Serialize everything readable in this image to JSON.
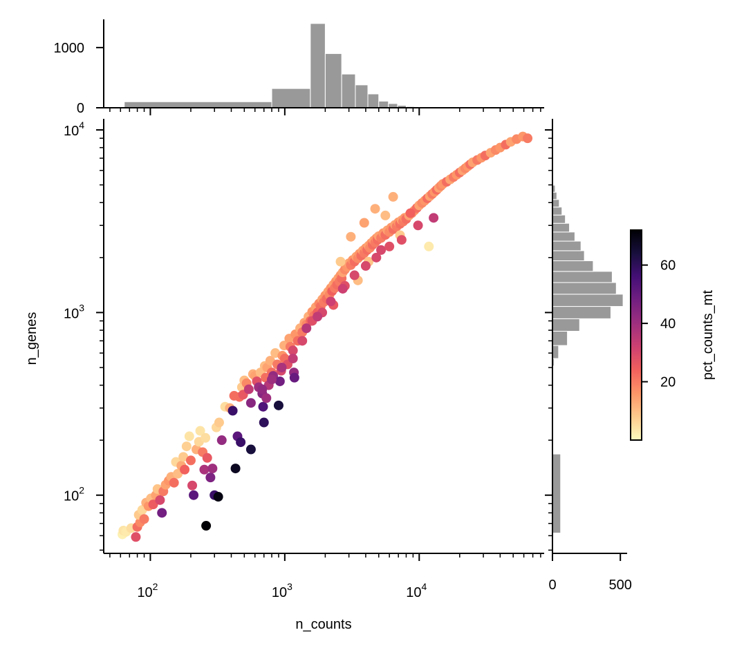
{
  "chart_data": [
    {
      "id": "main-scatter",
      "type": "scatter",
      "xlabel": "n_counts",
      "ylabel": "n_genes",
      "xscale": "log",
      "yscale": "log",
      "xlim": [
        45,
        85000
      ],
      "ylim": [
        48,
        11500
      ],
      "x_ticks": [
        {
          "value": 100,
          "base": "10",
          "exp": "2"
        },
        {
          "value": 1000,
          "base": "10",
          "exp": "3"
        },
        {
          "value": 10000,
          "base": "10",
          "exp": "4"
        }
      ],
      "y_ticks": [
        {
          "value": 100,
          "base": "10",
          "exp": "2"
        },
        {
          "value": 1000,
          "base": "10",
          "exp": "3"
        },
        {
          "value": 10000,
          "base": "10",
          "exp": "4"
        }
      ],
      "colormap": "magma_r",
      "color_key": "pct_counts_mt",
      "points": [
        [
          62,
          61,
          2
        ],
        [
          63,
          64,
          4
        ],
        [
          66,
          63,
          3
        ],
        [
          72,
          66,
          5
        ],
        [
          78,
          59,
          28
        ],
        [
          80,
          67,
          22
        ],
        [
          84,
          71,
          18
        ],
        [
          82,
          78,
          8
        ],
        [
          87,
          83,
          6
        ],
        [
          90,
          74,
          20
        ],
        [
          93,
          91,
          12
        ],
        [
          97,
          87,
          16
        ],
        [
          101,
          96,
          10
        ],
        [
          105,
          89,
          25
        ],
        [
          110,
          100,
          14
        ],
        [
          113,
          108,
          9
        ],
        [
          118,
          94,
          30
        ],
        [
          122,
          80,
          48
        ],
        [
          125,
          105,
          20
        ],
        [
          130,
          114,
          14
        ],
        [
          137,
          120,
          16
        ],
        [
          143,
          126,
          12
        ],
        [
          150,
          117,
          22
        ],
        [
          160,
          131,
          10
        ],
        [
          155,
          152,
          6
        ],
        [
          170,
          145,
          13
        ],
        [
          176,
          162,
          8
        ],
        [
          180,
          138,
          24
        ],
        [
          186,
          185,
          7
        ],
        [
          195,
          210,
          4
        ],
        [
          200,
          155,
          22
        ],
        [
          205,
          113,
          30
        ],
        [
          210,
          100,
          52
        ],
        [
          220,
          178,
          12
        ],
        [
          230,
          196,
          6
        ],
        [
          235,
          225,
          4
        ],
        [
          245,
          172,
          20
        ],
        [
          252,
          138,
          38
        ],
        [
          257,
          206,
          5
        ],
        [
          260,
          68,
          72
        ],
        [
          265,
          160,
          26
        ],
        [
          280,
          125,
          46
        ],
        [
          290,
          140,
          40
        ],
        [
          300,
          100,
          58
        ],
        [
          310,
          235,
          6
        ],
        [
          320,
          98,
          70
        ],
        [
          325,
          250,
          8
        ],
        [
          340,
          200,
          42
        ],
        [
          360,
          305,
          5
        ],
        [
          390,
          300,
          12
        ],
        [
          410,
          290,
          58
        ],
        [
          420,
          350,
          22
        ],
        [
          430,
          140,
          68
        ],
        [
          445,
          210,
          52
        ],
        [
          460,
          345,
          22
        ],
        [
          470,
          195,
          58
        ],
        [
          480,
          390,
          8
        ],
        [
          490,
          355,
          26
        ],
        [
          500,
          425,
          10
        ],
        [
          520,
          410,
          18
        ],
        [
          540,
          380,
          34
        ],
        [
          560,
          178,
          64
        ],
        [
          580,
          460,
          12
        ],
        [
          600,
          450,
          14
        ],
        [
          620,
          420,
          28
        ],
        [
          640,
          390,
          40
        ],
        [
          660,
          470,
          10
        ],
        [
          680,
          360,
          44
        ],
        [
          690,
          305,
          54
        ],
        [
          700,
          250,
          60
        ],
        [
          710,
          510,
          10
        ],
        [
          720,
          440,
          22
        ],
        [
          730,
          340,
          40
        ],
        [
          740,
          500,
          14
        ],
        [
          760,
          400,
          36
        ],
        [
          780,
          545,
          12
        ],
        [
          800,
          470,
          22
        ],
        [
          820,
          450,
          42
        ],
        [
          850,
          600,
          10
        ],
        [
          880,
          520,
          20
        ],
        [
          900,
          310,
          64
        ],
        [
          920,
          420,
          48
        ],
        [
          940,
          480,
          30
        ],
        [
          960,
          580,
          16
        ],
        [
          990,
          660,
          12
        ],
        [
          1000,
          560,
          22
        ],
        [
          1050,
          520,
          28
        ],
        [
          1080,
          720,
          14
        ],
        [
          1100,
          650,
          20
        ],
        [
          1150,
          620,
          30
        ],
        [
          1170,
          470,
          42
        ],
        [
          1180,
          440,
          50
        ],
        [
          1200,
          760,
          16
        ],
        [
          1250,
          700,
          22
        ],
        [
          1300,
          820,
          12
        ],
        [
          1350,
          780,
          20
        ],
        [
          1400,
          880,
          14
        ],
        [
          1450,
          860,
          18
        ],
        [
          1500,
          950,
          12
        ],
        [
          1550,
          900,
          22
        ],
        [
          1600,
          1010,
          16
        ],
        [
          1650,
          960,
          20
        ],
        [
          1700,
          1070,
          14
        ],
        [
          1750,
          1000,
          24
        ],
        [
          1800,
          1120,
          18
        ],
        [
          1850,
          1080,
          22
        ],
        [
          1900,
          1180,
          14
        ],
        [
          1950,
          1140,
          20
        ],
        [
          2000,
          1240,
          16
        ],
        [
          2050,
          1190,
          22
        ],
        [
          2100,
          1300,
          14
        ],
        [
          2150,
          1250,
          18
        ],
        [
          2200,
          1360,
          16
        ],
        [
          2250,
          1310,
          24
        ],
        [
          2300,
          1420,
          14
        ],
        [
          2350,
          1360,
          20
        ],
        [
          2400,
          1480,
          16
        ],
        [
          2450,
          1420,
          22
        ],
        [
          2500,
          1540,
          14
        ],
        [
          2550,
          1480,
          20
        ],
        [
          2600,
          1600,
          16
        ],
        [
          2650,
          1540,
          22
        ],
        [
          2700,
          1660,
          14
        ],
        [
          2800,
          1720,
          18
        ],
        [
          2900,
          1780,
          16
        ],
        [
          3000,
          1860,
          14
        ],
        [
          3100,
          1820,
          20
        ],
        [
          3200,
          1940,
          16
        ],
        [
          3300,
          1900,
          22
        ],
        [
          3400,
          2020,
          14
        ],
        [
          3500,
          1980,
          18
        ],
        [
          3600,
          2100,
          16
        ],
        [
          3700,
          2050,
          22
        ],
        [
          3800,
          2180,
          14
        ],
        [
          3900,
          2120,
          20
        ],
        [
          4000,
          2250,
          16
        ],
        [
          4100,
          2200,
          22
        ],
        [
          4200,
          2320,
          14
        ],
        [
          4300,
          2260,
          18
        ],
        [
          4400,
          2400,
          16
        ],
        [
          4500,
          2350,
          22
        ],
        [
          4600,
          2480,
          14
        ],
        [
          4700,
          2420,
          20
        ],
        [
          4800,
          2550,
          16
        ],
        [
          4900,
          2500,
          22
        ],
        [
          5000,
          2620,
          14
        ],
        [
          5200,
          2560,
          20
        ],
        [
          5400,
          2720,
          16
        ],
        [
          5600,
          2660,
          22
        ],
        [
          5800,
          2820,
          14
        ],
        [
          6000,
          2760,
          18
        ],
        [
          6200,
          2920,
          16
        ],
        [
          6400,
          2860,
          22
        ],
        [
          6600,
          3020,
          14
        ],
        [
          6800,
          2960,
          20
        ],
        [
          7000,
          3120,
          16
        ],
        [
          7200,
          3060,
          22
        ],
        [
          7400,
          3200,
          14
        ],
        [
          7600,
          3150,
          20
        ],
        [
          7800,
          3300,
          16
        ],
        [
          8000,
          3250,
          22
        ],
        [
          8400,
          3400,
          14
        ],
        [
          8800,
          3500,
          18
        ],
        [
          9200,
          3620,
          16
        ],
        [
          9600,
          3740,
          22
        ],
        [
          10000,
          3860,
          14
        ],
        [
          10500,
          3980,
          18
        ],
        [
          11000,
          4100,
          16
        ],
        [
          11500,
          4220,
          22
        ],
        [
          12000,
          4340,
          14
        ],
        [
          12500,
          4460,
          20
        ],
        [
          13000,
          4580,
          16
        ],
        [
          13500,
          4700,
          22
        ],
        [
          14000,
          4820,
          14
        ],
        [
          14500,
          4940,
          18
        ],
        [
          15000,
          5060,
          16
        ],
        [
          16000,
          5200,
          22
        ],
        [
          17000,
          5360,
          14
        ],
        [
          18000,
          5520,
          20
        ],
        [
          19000,
          5680,
          16
        ],
        [
          20000,
          5840,
          22
        ],
        [
          21000,
          6000,
          14
        ],
        [
          22000,
          6160,
          18
        ],
        [
          23000,
          6320,
          16
        ],
        [
          24000,
          6480,
          22
        ],
        [
          25000,
          6640,
          14
        ],
        [
          27000,
          6840,
          20
        ],
        [
          29000,
          7040,
          16
        ],
        [
          31000,
          7240,
          22
        ],
        [
          34000,
          7500,
          14
        ],
        [
          37000,
          7760,
          18
        ],
        [
          40000,
          8000,
          16
        ],
        [
          44000,
          8300,
          22
        ],
        [
          48000,
          8600,
          14
        ],
        [
          53000,
          8900,
          18
        ],
        [
          59000,
          9200,
          16
        ],
        [
          64000,
          9000,
          20
        ],
        [
          11800,
          2300,
          3
        ],
        [
          7200,
          2650,
          8
        ],
        [
          5600,
          3400,
          10
        ],
        [
          4700,
          3700,
          12
        ],
        [
          4200,
          1900,
          9
        ],
        [
          3500,
          1500,
          10
        ],
        [
          2600,
          1900,
          8
        ],
        [
          3100,
          2600,
          12
        ],
        [
          3900,
          3100,
          14
        ],
        [
          6400,
          4300,
          12
        ],
        [
          8600,
          3500,
          24
        ],
        [
          5200,
          2200,
          30
        ],
        [
          2800,
          1400,
          28
        ],
        [
          2300,
          1100,
          26
        ],
        [
          1900,
          1000,
          30
        ],
        [
          1600,
          900,
          28
        ],
        [
          1350,
          700,
          30
        ],
        [
          1150,
          560,
          34
        ],
        [
          950,
          500,
          38
        ],
        [
          800,
          430,
          40
        ],
        [
          680,
          380,
          42
        ],
        [
          560,
          320,
          44
        ],
        [
          12800,
          3300,
          34
        ],
        [
          9800,
          3000,
          30
        ],
        [
          7400,
          2500,
          28
        ],
        [
          6000,
          2300,
          28
        ],
        [
          4800,
          2000,
          30
        ],
        [
          4000,
          1800,
          30
        ],
        [
          3300,
          1600,
          30
        ],
        [
          2700,
          1350,
          32
        ],
        [
          2200,
          1150,
          32
        ],
        [
          1750,
          950,
          34
        ],
        [
          1450,
          820,
          36
        ]
      ]
    },
    {
      "id": "top-histogram",
      "type": "bar",
      "orientation": "vertical",
      "xscale": "log",
      "ylim": [
        0,
        1400
      ],
      "y_ticks": [
        "0",
        "1000"
      ],
      "bins": [
        {
          "x0": 64,
          "x1": 800,
          "count": 100
        },
        {
          "x0": 800,
          "x1": 1550,
          "count": 320
        },
        {
          "x0": 1550,
          "x1": 2000,
          "count": 1400
        },
        {
          "x0": 2000,
          "x1": 2650,
          "count": 900
        },
        {
          "x0": 2650,
          "x1": 3350,
          "count": 560
        },
        {
          "x0": 3350,
          "x1": 4150,
          "count": 380
        },
        {
          "x0": 4150,
          "x1": 5000,
          "count": 230
        },
        {
          "x0": 5000,
          "x1": 5900,
          "count": 110
        },
        {
          "x0": 5900,
          "x1": 6900,
          "count": 70
        },
        {
          "x0": 6900,
          "x1": 8000,
          "count": 40
        },
        {
          "x0": 8000,
          "x1": 9200,
          "count": 20
        }
      ]
    },
    {
      "id": "right-histogram",
      "type": "bar",
      "orientation": "horizontal",
      "yscale": "log",
      "xlim": [
        0,
        550
      ],
      "x_ticks": [
        "0",
        "500"
      ],
      "bins": [
        {
          "y0": 62,
          "y1": 168,
          "count": 60
        },
        {
          "y0": 510,
          "y1": 560,
          "count": 12
        },
        {
          "y0": 560,
          "y1": 660,
          "count": 45
        },
        {
          "y0": 660,
          "y1": 790,
          "count": 110
        },
        {
          "y0": 790,
          "y1": 925,
          "count": 200
        },
        {
          "y0": 925,
          "y1": 1080,
          "count": 430
        },
        {
          "y0": 1080,
          "y1": 1260,
          "count": 520
        },
        {
          "y0": 1260,
          "y1": 1460,
          "count": 470
        },
        {
          "y0": 1460,
          "y1": 1680,
          "count": 440
        },
        {
          "y0": 1680,
          "y1": 1920,
          "count": 300
        },
        {
          "y0": 1920,
          "y1": 2180,
          "count": 235
        },
        {
          "y0": 2180,
          "y1": 2460,
          "count": 210
        },
        {
          "y0": 2460,
          "y1": 2760,
          "count": 165
        },
        {
          "y0": 2760,
          "y1": 3080,
          "count": 125
        },
        {
          "y0": 3080,
          "y1": 3420,
          "count": 95
        },
        {
          "y0": 3420,
          "y1": 3780,
          "count": 70
        },
        {
          "y0": 3780,
          "y1": 4160,
          "count": 50
        },
        {
          "y0": 4160,
          "y1": 4560,
          "count": 32
        },
        {
          "y0": 4560,
          "y1": 4980,
          "count": 20
        }
      ]
    },
    {
      "id": "colorbar",
      "type": "colorbar",
      "label": "pct_counts_mt",
      "colormap": "magma_r",
      "range": [
        0,
        72
      ],
      "ticks": [
        "20",
        "40",
        "60"
      ]
    }
  ],
  "colors": {
    "histogram_fill": "#999999",
    "axis": "#000000",
    "magma_r_stops": [
      "#fcfdbf",
      "#feca8d",
      "#fd9668",
      "#f1605d",
      "#cd4071",
      "#9e2f7f",
      "#721f81",
      "#440f76",
      "#180f3d",
      "#000004"
    ]
  }
}
